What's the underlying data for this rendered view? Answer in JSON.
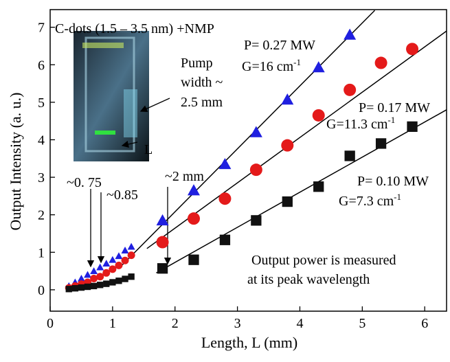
{
  "chart_data": {
    "type": "scatter",
    "x_label": "Length, L (mm)",
    "y_label": "Output Intensity (a. u.)",
    "xlim": [
      0,
      6.35
    ],
    "ylim": [
      -0.57,
      7.47
    ],
    "xticks": [
      0,
      1,
      2,
      3,
      4,
      5,
      6
    ],
    "yticks": [
      0,
      1,
      2,
      3,
      4,
      5,
      6,
      7
    ],
    "series": [
      {
        "marker": "triangle",
        "color": "#1f1fe0",
        "x": [
          0.3,
          0.4,
          0.5,
          0.6,
          0.7,
          0.8,
          0.9,
          1.0,
          1.1,
          1.2,
          1.3,
          1.8,
          2.3,
          2.8,
          3.3,
          3.8,
          4.3,
          4.8
        ],
        "values": [
          0.1,
          0.2,
          0.3,
          0.4,
          0.5,
          0.6,
          0.7,
          0.8,
          0.9,
          1.05,
          1.15,
          1.85,
          2.65,
          3.35,
          4.2,
          5.07,
          5.93,
          6.8
        ],
        "fit_x": [
          1.1,
          5.2
        ],
        "fit_y": [
          0.57,
          7.45
        ]
      },
      {
        "marker": "circle",
        "color": "#e41a1a",
        "x": [
          0.3,
          0.4,
          0.5,
          0.6,
          0.7,
          0.8,
          0.9,
          1.0,
          1.1,
          1.2,
          1.3,
          1.8,
          2.3,
          2.8,
          3.3,
          3.8,
          4.3,
          4.8,
          5.3,
          5.8
        ],
        "values": [
          0.05,
          0.1,
          0.15,
          0.2,
          0.3,
          0.35,
          0.45,
          0.55,
          0.65,
          0.78,
          0.92,
          1.27,
          1.9,
          2.43,
          3.2,
          3.85,
          4.65,
          5.33,
          6.05,
          6.42
        ],
        "fit_x": [
          1.55,
          6.35
        ],
        "fit_y": [
          1.1,
          6.9
        ]
      },
      {
        "marker": "square",
        "color": "#111111",
        "x": [
          0.3,
          0.4,
          0.5,
          0.6,
          0.7,
          0.8,
          0.9,
          1.0,
          1.1,
          1.2,
          1.3,
          1.8,
          2.3,
          2.8,
          3.3,
          3.8,
          4.3,
          4.8,
          5.3,
          5.8
        ],
        "values": [
          0.02,
          0.04,
          0.06,
          0.08,
          0.1,
          0.13,
          0.16,
          0.2,
          0.24,
          0.29,
          0.35,
          0.57,
          0.8,
          1.33,
          1.85,
          2.35,
          2.75,
          3.57,
          3.9,
          4.35
        ],
        "fit_x": [
          1.7,
          6.35
        ],
        "fit_y": [
          0.45,
          4.8
        ]
      }
    ],
    "annotations": [
      {
        "text": "C-dots (1.5 – 3.5 nm) +NMP"
      },
      {
        "text": "P= 0.27 MW"
      },
      {
        "text": "G=16 cm",
        "sup": "-1"
      },
      {
        "text": "P= 0.17 MW"
      },
      {
        "text": "G=11.3 cm",
        "sup": "-1"
      },
      {
        "text": "P= 0.10 MW"
      },
      {
        "text": "G=7.3 cm",
        "sup": "-1"
      },
      {
        "text": "Pump"
      },
      {
        "text": "width ~"
      },
      {
        "text": "2.5 mm"
      },
      {
        "text": "L"
      },
      {
        "text": "~0. 75"
      },
      {
        "text": "~0.85"
      },
      {
        "text": "~2 mm"
      },
      {
        "text": "Output power is measured"
      },
      {
        "text": "at its peak wavelength"
      }
    ]
  }
}
